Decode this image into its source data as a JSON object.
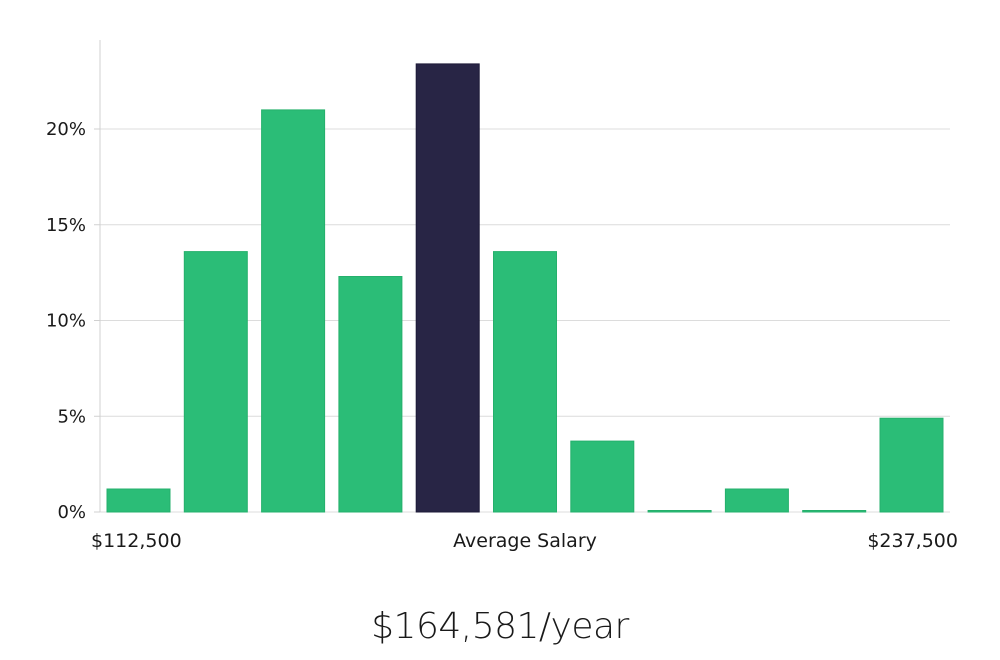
{
  "chart_data": {
    "type": "bar",
    "title": "",
    "xlabel": "Average Salary",
    "ylabel": "",
    "x_min_label": "$112,500",
    "x_max_label": "$237,500",
    "ylim": [
      0,
      25
    ],
    "yticks": [
      0,
      5,
      10,
      15,
      20
    ],
    "ytick_labels": [
      "0%",
      "5%",
      "10%",
      "15%",
      "20%"
    ],
    "grid": true,
    "values": [
      1.2,
      13.6,
      21.0,
      12.3,
      23.4,
      13.6,
      3.7,
      0.05,
      1.2,
      0.05,
      4.9
    ],
    "highlight_index": 4,
    "colors": {
      "bar": "#2bbd77",
      "highlight": "#282545",
      "grid": "#dcdcdc",
      "axis": "#d0d0d0"
    }
  },
  "salary": {
    "value": "$164,581/year"
  }
}
